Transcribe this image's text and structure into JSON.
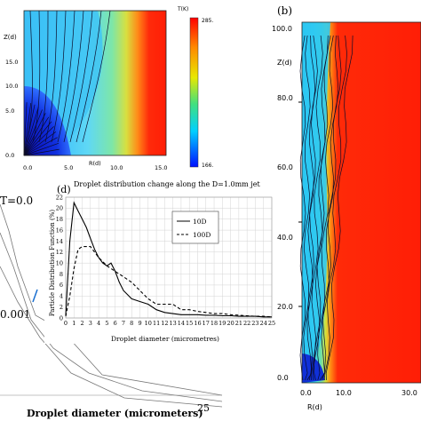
{
  "panel_a": {
    "y_axis_label": "Z(d)",
    "x_axis_label": "R(d)",
    "y_ticks": [
      "15.0",
      "10.0",
      "5.0",
      "0.0"
    ],
    "x_ticks": [
      "0.0",
      "5.0",
      "10.0",
      "15.0"
    ],
    "colorbar_title": "T(K)",
    "colorbar_max": "285.",
    "colorbar_min": "166."
  },
  "panel_b": {
    "tag": "(b)",
    "y_axis_label": "Z(d)",
    "x_axis_label": "R(d)",
    "y_ticks": [
      "100.0",
      "80.0",
      "60.0",
      "40.0",
      "20.0",
      "0.0"
    ],
    "x_ticks": [
      "0.0",
      "10.0",
      "30.0"
    ]
  },
  "panel_c": {
    "title_fragment": "T=0.0",
    "label_fragment": "0.001",
    "x_axis_label": "Droplet diameter (micrometers)",
    "x_tick": "25"
  },
  "chart_data": {
    "type": "line",
    "tag": "(d)",
    "title": "Droplet distribution change along the D=1.0mm jet",
    "xlabel": "Droplet diameter (micrometres)",
    "ylabel": "Particle Distribution Function (%)",
    "xlim": [
      0,
      25
    ],
    "ylim": [
      0,
      22
    ],
    "x_ticks": [
      "0",
      "1",
      "2",
      "3",
      "4",
      "5",
      "6",
      "7",
      "8",
      "9",
      "10",
      "11",
      "12",
      "13",
      "14",
      "15",
      "16",
      "17",
      "18",
      "19",
      "20",
      "21",
      "22",
      "23",
      "24",
      "25"
    ],
    "y_ticks": [
      "0",
      "2",
      "4",
      "6",
      "8",
      "10",
      "12",
      "14",
      "16",
      "18",
      "20",
      "22"
    ],
    "grid": true,
    "legend": "top-right",
    "series": [
      {
        "name": "10D",
        "style": "solid",
        "x": [
          0,
          0.5,
          1,
          1.5,
          2,
          2.5,
          3,
          3.5,
          4,
          4.5,
          5,
          5.5,
          6,
          6.5,
          7,
          8,
          9,
          10,
          11,
          12,
          13,
          14,
          15,
          16,
          17,
          18,
          19,
          20,
          21,
          22,
          23,
          24,
          25
        ],
        "y": [
          0.5,
          14,
          21,
          19.5,
          18,
          16.5,
          14.5,
          12.5,
          11,
          10,
          9.5,
          10,
          8.5,
          6.5,
          5,
          3.5,
          3,
          2.5,
          1.5,
          1,
          0.8,
          0.6,
          0.6,
          0.6,
          0.5,
          0.5,
          0.4,
          0.4,
          0.3,
          0.3,
          0.3,
          0.2,
          0.2
        ]
      },
      {
        "name": "100D",
        "style": "dashed",
        "x": [
          0,
          0.5,
          1,
          1.5,
          2,
          3,
          4,
          5,
          6,
          7,
          8,
          9,
          10,
          11,
          12,
          13,
          14,
          15,
          16,
          17,
          18,
          19,
          20,
          21,
          22,
          23,
          24,
          25
        ],
        "y": [
          0.3,
          4,
          9,
          12.5,
          13,
          13,
          11,
          9.5,
          8.5,
          7.5,
          6.5,
          5,
          3.5,
          2.5,
          2.5,
          2.5,
          1.5,
          1.5,
          1.2,
          1,
          0.8,
          0.8,
          0.6,
          0.5,
          0.4,
          0.3,
          0.3,
          0.2
        ]
      }
    ]
  }
}
